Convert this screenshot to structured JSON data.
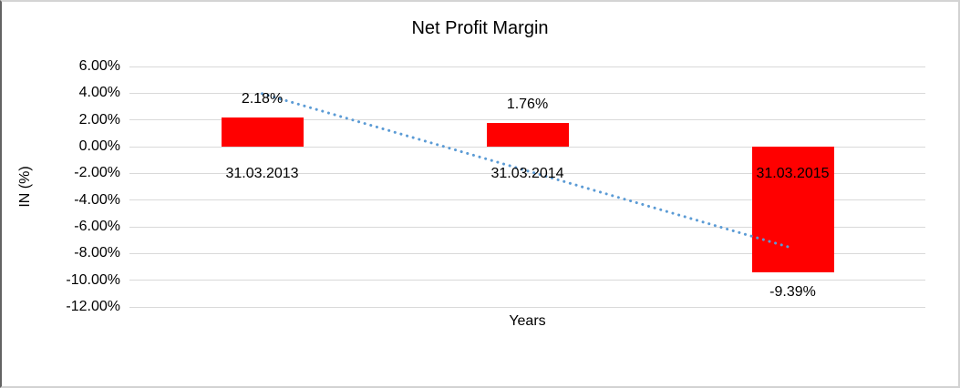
{
  "chart_data": {
    "type": "bar",
    "title": "Net Profit Margin",
    "xlabel": "Years",
    "ylabel": "IN (%)",
    "categories": [
      "31.03.2013",
      "31.03.2014",
      "31.03.2015"
    ],
    "values": [
      2.18,
      1.76,
      -9.39
    ],
    "data_labels": [
      "2.18%",
      "1.76%",
      "-9.39%"
    ],
    "y_axis": {
      "min": -12,
      "max": 6,
      "step": 2,
      "tick_labels": [
        "6.00%",
        "4.00%",
        "2.00%",
        "0.00%",
        "-2.00%",
        "-4.00%",
        "-6.00%",
        "-8.00%",
        "-10.00%",
        "-12.00%"
      ]
    },
    "grid": true,
    "legend": "none",
    "bar_color": "#ff0000",
    "gridline_color": "#d9d9d9",
    "text_color": "#000000",
    "trendline": {
      "type": "linear",
      "style": "dotted",
      "color": "#5b9bd5",
      "start_value": 3.97,
      "end_value": -7.6
    }
  }
}
